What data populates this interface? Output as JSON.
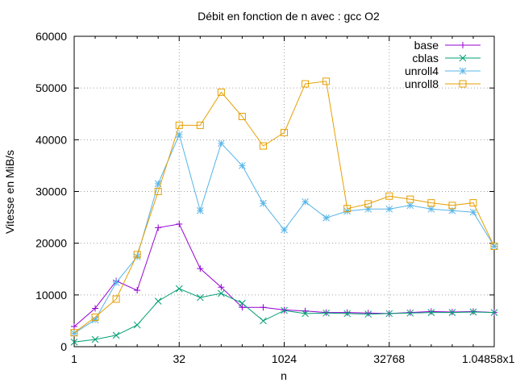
{
  "chart_data": {
    "type": "line",
    "title": "Débit en fonction de n avec :  gcc O2",
    "xlabel": "n",
    "ylabel": "Vitesse en MiB/s",
    "x_scale": "log2",
    "xlim": [
      1,
      1048576
    ],
    "ylim": [
      0,
      60000
    ],
    "x_ticks": [
      1,
      32,
      1024,
      32768,
      1048576
    ],
    "x_tick_labels": [
      "1",
      "32",
      "1024",
      "32768",
      "1.04858x1"
    ],
    "y_ticks": [
      0,
      10000,
      20000,
      30000,
      40000,
      50000,
      60000
    ],
    "y_tick_labels": [
      "0",
      "10000",
      "20000",
      "30000",
      "40000",
      "50000",
      "60000"
    ],
    "grid": true,
    "legend_position": "top-right",
    "x": [
      1,
      2,
      4,
      8,
      16,
      32,
      64,
      128,
      256,
      512,
      1024,
      2048,
      4096,
      8192,
      16384,
      32768,
      65536,
      131072,
      262144,
      524288,
      1048576
    ],
    "series": [
      {
        "name": "base",
        "color": "#9400d3",
        "marker": "plus",
        "values": [
          3900,
          7400,
          12700,
          10900,
          23000,
          23700,
          15100,
          11500,
          7600,
          7600,
          7100,
          6900,
          6600,
          6600,
          6500,
          6400,
          6600,
          6800,
          6700,
          6800,
          6600
        ]
      },
      {
        "name": "cblas",
        "color": "#009e73",
        "marker": "x",
        "values": [
          900,
          1400,
          2200,
          4200,
          8800,
          11200,
          9500,
          10300,
          8400,
          5000,
          7000,
          6400,
          6500,
          6400,
          6300,
          6400,
          6500,
          6600,
          6600,
          6700,
          6600
        ]
      },
      {
        "name": "unroll4",
        "color": "#56b4e9",
        "marker": "star",
        "values": [
          2600,
          5200,
          12400,
          17400,
          31500,
          41000,
          26300,
          39300,
          35000,
          27700,
          22600,
          28000,
          24900,
          26200,
          26600,
          26600,
          27300,
          26600,
          26300,
          26000,
          19400
        ]
      },
      {
        "name": "unroll8",
        "color": "#e69f00",
        "marker": "square",
        "values": [
          2700,
          5700,
          9200,
          17800,
          30000,
          42800,
          42800,
          49200,
          44500,
          38800,
          41400,
          50800,
          51300,
          26700,
          27600,
          29100,
          28500,
          27800,
          27300,
          27800,
          19400
        ]
      }
    ]
  }
}
